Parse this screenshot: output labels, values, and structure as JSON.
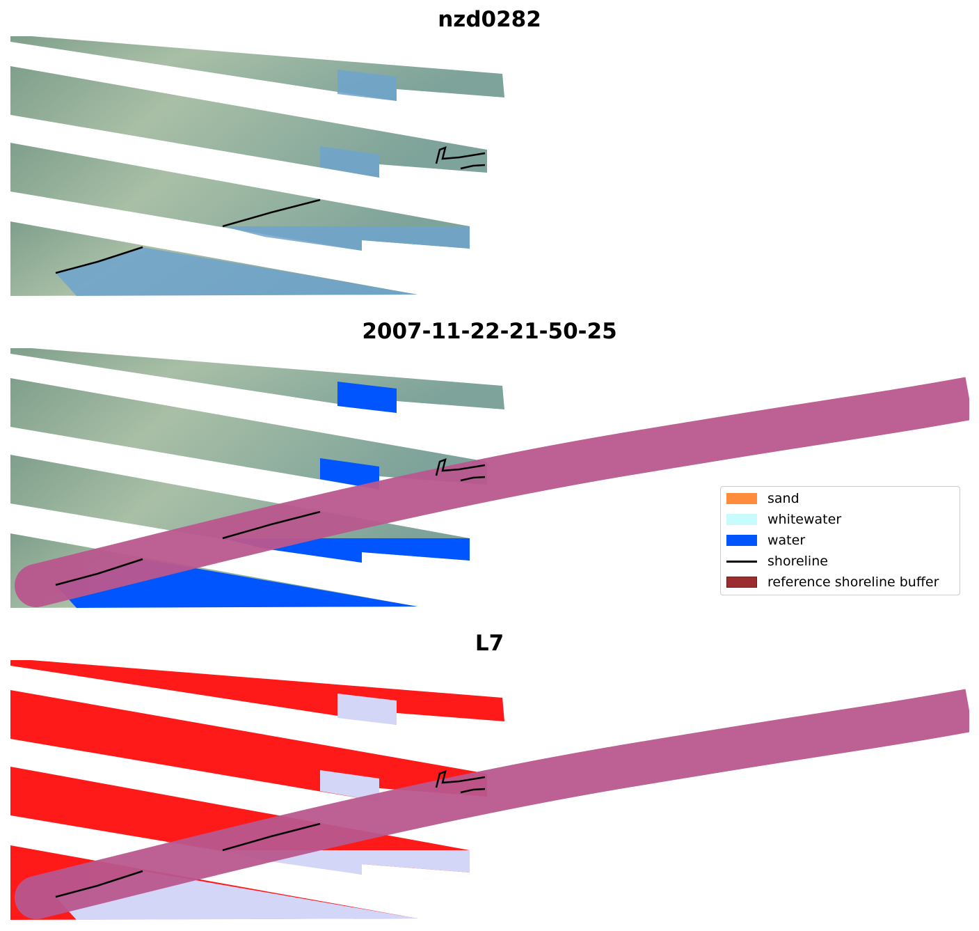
{
  "panels": [
    {
      "title": "nzd0282",
      "style": "rgb"
    },
    {
      "title": "2007-11-22-21-50-25",
      "style": "classified"
    },
    {
      "title": "L7",
      "style": "index"
    }
  ],
  "legend": {
    "items": [
      {
        "label": "sand",
        "color": "#ff8c3a",
        "type": "patch"
      },
      {
        "label": "whitewater",
        "color": "#c8fcfc",
        "type": "patch"
      },
      {
        "label": "water",
        "color": "#0055ff",
        "type": "patch"
      },
      {
        "label": "shoreline",
        "color": "#000000",
        "type": "line"
      },
      {
        "label": "reference shoreline buffer",
        "color": "#9b2d30",
        "type": "patch"
      }
    ]
  },
  "colors": {
    "land": "#8fab98",
    "water_rgb": "#6fa3cc",
    "water_class": "#0055ff",
    "buffer": "#b9578e",
    "index_land": "#ff1a1a",
    "index_water": "#d4d6f7"
  }
}
